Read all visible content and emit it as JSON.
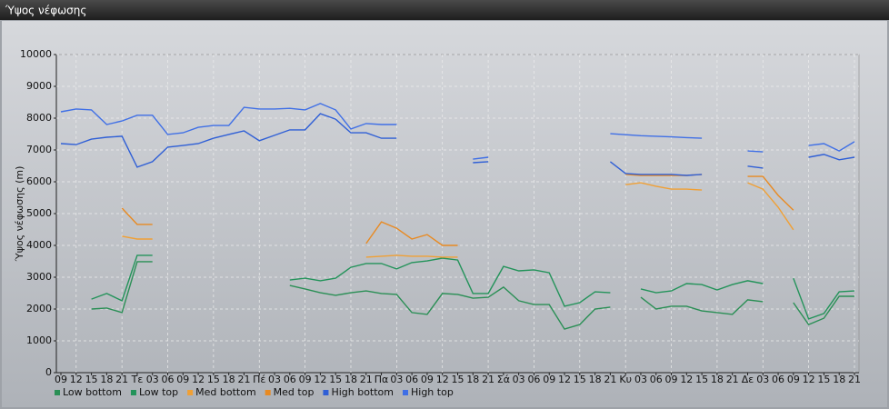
{
  "chart_data": {
    "type": "line",
    "title": "Ύψος νέφωσης",
    "y_label": "Ύψος νέφωσης (m)",
    "categories": [
      "09",
      "12",
      "15",
      "18",
      "21",
      "Τε",
      "03",
      "06",
      "09",
      "12",
      "15",
      "18",
      "21",
      "Πέ",
      "03",
      "06",
      "09",
      "12",
      "15",
      "18",
      "21",
      "Πα",
      "03",
      "06",
      "09",
      "12",
      "15",
      "18",
      "21",
      "Σά",
      "03",
      "06",
      "09",
      "12",
      "15",
      "18",
      "21",
      "Κυ",
      "03",
      "06",
      "09",
      "12",
      "15",
      "18",
      "21",
      "Δε",
      "03",
      "06",
      "09",
      "12",
      "15",
      "18",
      "21"
    ],
    "ylim": [
      0,
      10000
    ],
    "yticks": [
      0,
      1000,
      2000,
      3000,
      4000,
      5000,
      6000,
      7000,
      8000,
      9000,
      10000
    ],
    "grid": true,
    "series": [
      {
        "name": "Low bottom",
        "color": "#2a8f55",
        "values": [
          null,
          null,
          2000,
          2030,
          1890,
          3490,
          3490,
          null,
          null,
          null,
          null,
          null,
          null,
          null,
          null,
          2740,
          2630,
          2510,
          2430,
          2510,
          2570,
          2490,
          2460,
          1890,
          1830,
          2490,
          2460,
          2340,
          2370,
          2690,
          2260,
          2140,
          2140,
          1370,
          1510,
          2000,
          2060,
          null,
          2370,
          2000,
          2090,
          2090,
          1940,
          1890,
          1830,
          2290,
          2230,
          null,
          2200,
          1510,
          1710,
          2400,
          2400
        ]
      },
      {
        "name": "Low top",
        "color": "#23935a",
        "values": [
          null,
          null,
          2310,
          2490,
          2260,
          3690,
          3690,
          null,
          null,
          null,
          null,
          null,
          null,
          null,
          null,
          2910,
          2970,
          2890,
          2970,
          3310,
          3430,
          3430,
          3260,
          3460,
          3510,
          3600,
          3540,
          2490,
          2490,
          3340,
          3200,
          3230,
          3140,
          2090,
          2200,
          2540,
          2510,
          null,
          2630,
          2510,
          2570,
          2800,
          2770,
          2600,
          2770,
          2890,
          2800,
          null,
          2970,
          1690,
          1860,
          2540,
          2570
        ]
      },
      {
        "name": "Med bottom",
        "color": "#f0a035",
        "values": [
          null,
          null,
          null,
          null,
          4290,
          4200,
          4200,
          null,
          null,
          null,
          null,
          null,
          null,
          null,
          null,
          null,
          null,
          null,
          null,
          null,
          3630,
          3660,
          3690,
          3660,
          3660,
          3630,
          3630,
          null,
          null,
          null,
          null,
          null,
          null,
          null,
          null,
          null,
          null,
          5910,
          5970,
          5860,
          5770,
          5770,
          5740,
          null,
          null,
          5970,
          5770,
          5200,
          4490,
          null,
          null,
          null,
          null
        ]
      },
      {
        "name": "Med top",
        "color": "#e88a22",
        "values": [
          null,
          null,
          null,
          null,
          5170,
          4660,
          4660,
          null,
          null,
          null,
          null,
          null,
          null,
          null,
          null,
          null,
          null,
          null,
          null,
          null,
          4060,
          4740,
          4540,
          4200,
          4340,
          4000,
          4000,
          null,
          null,
          null,
          null,
          null,
          null,
          null,
          null,
          null,
          null,
          6230,
          6200,
          6200,
          6200,
          6200,
          6230,
          null,
          null,
          6170,
          6170,
          5570,
          5110,
          null,
          null,
          null,
          null
        ]
      },
      {
        "name": "High bottom",
        "color": "#2f5fd6",
        "values": [
          7200,
          7170,
          7340,
          7400,
          7430,
          6460,
          6630,
          7090,
          7140,
          7200,
          7370,
          7490,
          7600,
          7290,
          7460,
          7630,
          7630,
          8140,
          7970,
          7540,
          7540,
          7370,
          7370,
          null,
          null,
          null,
          null,
          6600,
          6630,
          null,
          null,
          null,
          null,
          null,
          null,
          null,
          6630,
          6260,
          6230,
          6230,
          6230,
          6200,
          6230,
          null,
          null,
          6490,
          6430,
          null,
          null,
          6770,
          6860,
          6690,
          6770
        ]
      },
      {
        "name": "High top",
        "color": "#3f6fe6",
        "values": [
          8200,
          8290,
          8260,
          7800,
          7910,
          8090,
          8090,
          7490,
          7540,
          7710,
          7770,
          7770,
          8340,
          8290,
          8290,
          8310,
          8260,
          8460,
          8260,
          7660,
          7830,
          7800,
          7800,
          null,
          null,
          null,
          null,
          6710,
          6770,
          null,
          null,
          null,
          null,
          null,
          null,
          null,
          7510,
          7480,
          7450,
          7430,
          7410,
          7390,
          7370,
          null,
          null,
          6970,
          6940,
          null,
          null,
          7140,
          7200,
          6970,
          7260
        ]
      }
    ]
  }
}
